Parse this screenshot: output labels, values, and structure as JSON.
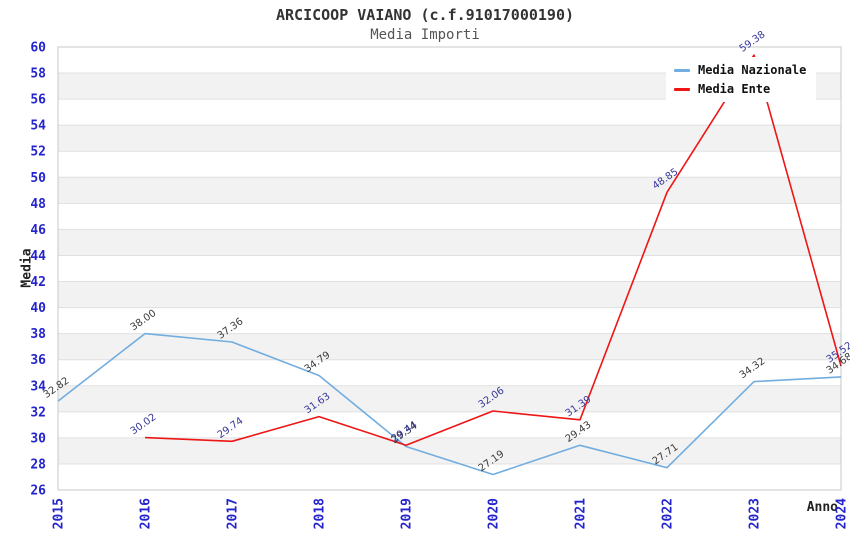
{
  "title": "ARCICOOP VAIANO (c.f.91017000190)",
  "subtitle": "Media Importi",
  "legend": {
    "items": [
      {
        "label": "Media Nazionale",
        "color": "#72ade0"
      },
      {
        "label": "Media Ente",
        "color": "#ee1515"
      }
    ]
  },
  "axes": {
    "y_label": "Media",
    "x_label": "Anno",
    "y_ticks": [
      26,
      28,
      30,
      32,
      34,
      36,
      38,
      40,
      42,
      44,
      46,
      48,
      50,
      52,
      54,
      56,
      58,
      60
    ],
    "x_ticks": [
      "2015",
      "2016",
      "2017",
      "2018",
      "2019",
      "2020",
      "2021",
      "2022",
      "2023",
      "2024"
    ],
    "tick_color": "#2424cc"
  },
  "chart_data": {
    "type": "line",
    "title": "ARCICOOP VAIANO (c.f.91017000190)",
    "subtitle": "Media Importi",
    "xlabel": "Anno",
    "ylabel": "Media",
    "x": [
      2015,
      2016,
      2017,
      2018,
      2019,
      2020,
      2021,
      2022,
      2023,
      2024
    ],
    "ylim": [
      26,
      60
    ],
    "y_tick_step": 2,
    "grid": "horizontal gridlines with alternating white/gray stripe bands",
    "legend_position": "top-right",
    "series": [
      {
        "name": "Media Nazionale",
        "color": "#72ade0",
        "label_color": "#3a3a3a",
        "values": [
          32.82,
          38.0,
          37.36,
          34.79,
          29.34,
          27.19,
          29.43,
          27.71,
          34.32,
          34.68
        ]
      },
      {
        "name": "Media Ente",
        "color": "#ee1515",
        "label_color": "#363699",
        "values": [
          null,
          30.02,
          29.74,
          31.63,
          29.44,
          32.06,
          31.39,
          48.85,
          59.38,
          35.52
        ]
      }
    ],
    "style": {
      "stripe_color": "#f2f2f2",
      "gridline_color": "#e0e0e0",
      "plot_border_color": "#c8c8c8",
      "data_label_rotation_deg": -35
    }
  }
}
